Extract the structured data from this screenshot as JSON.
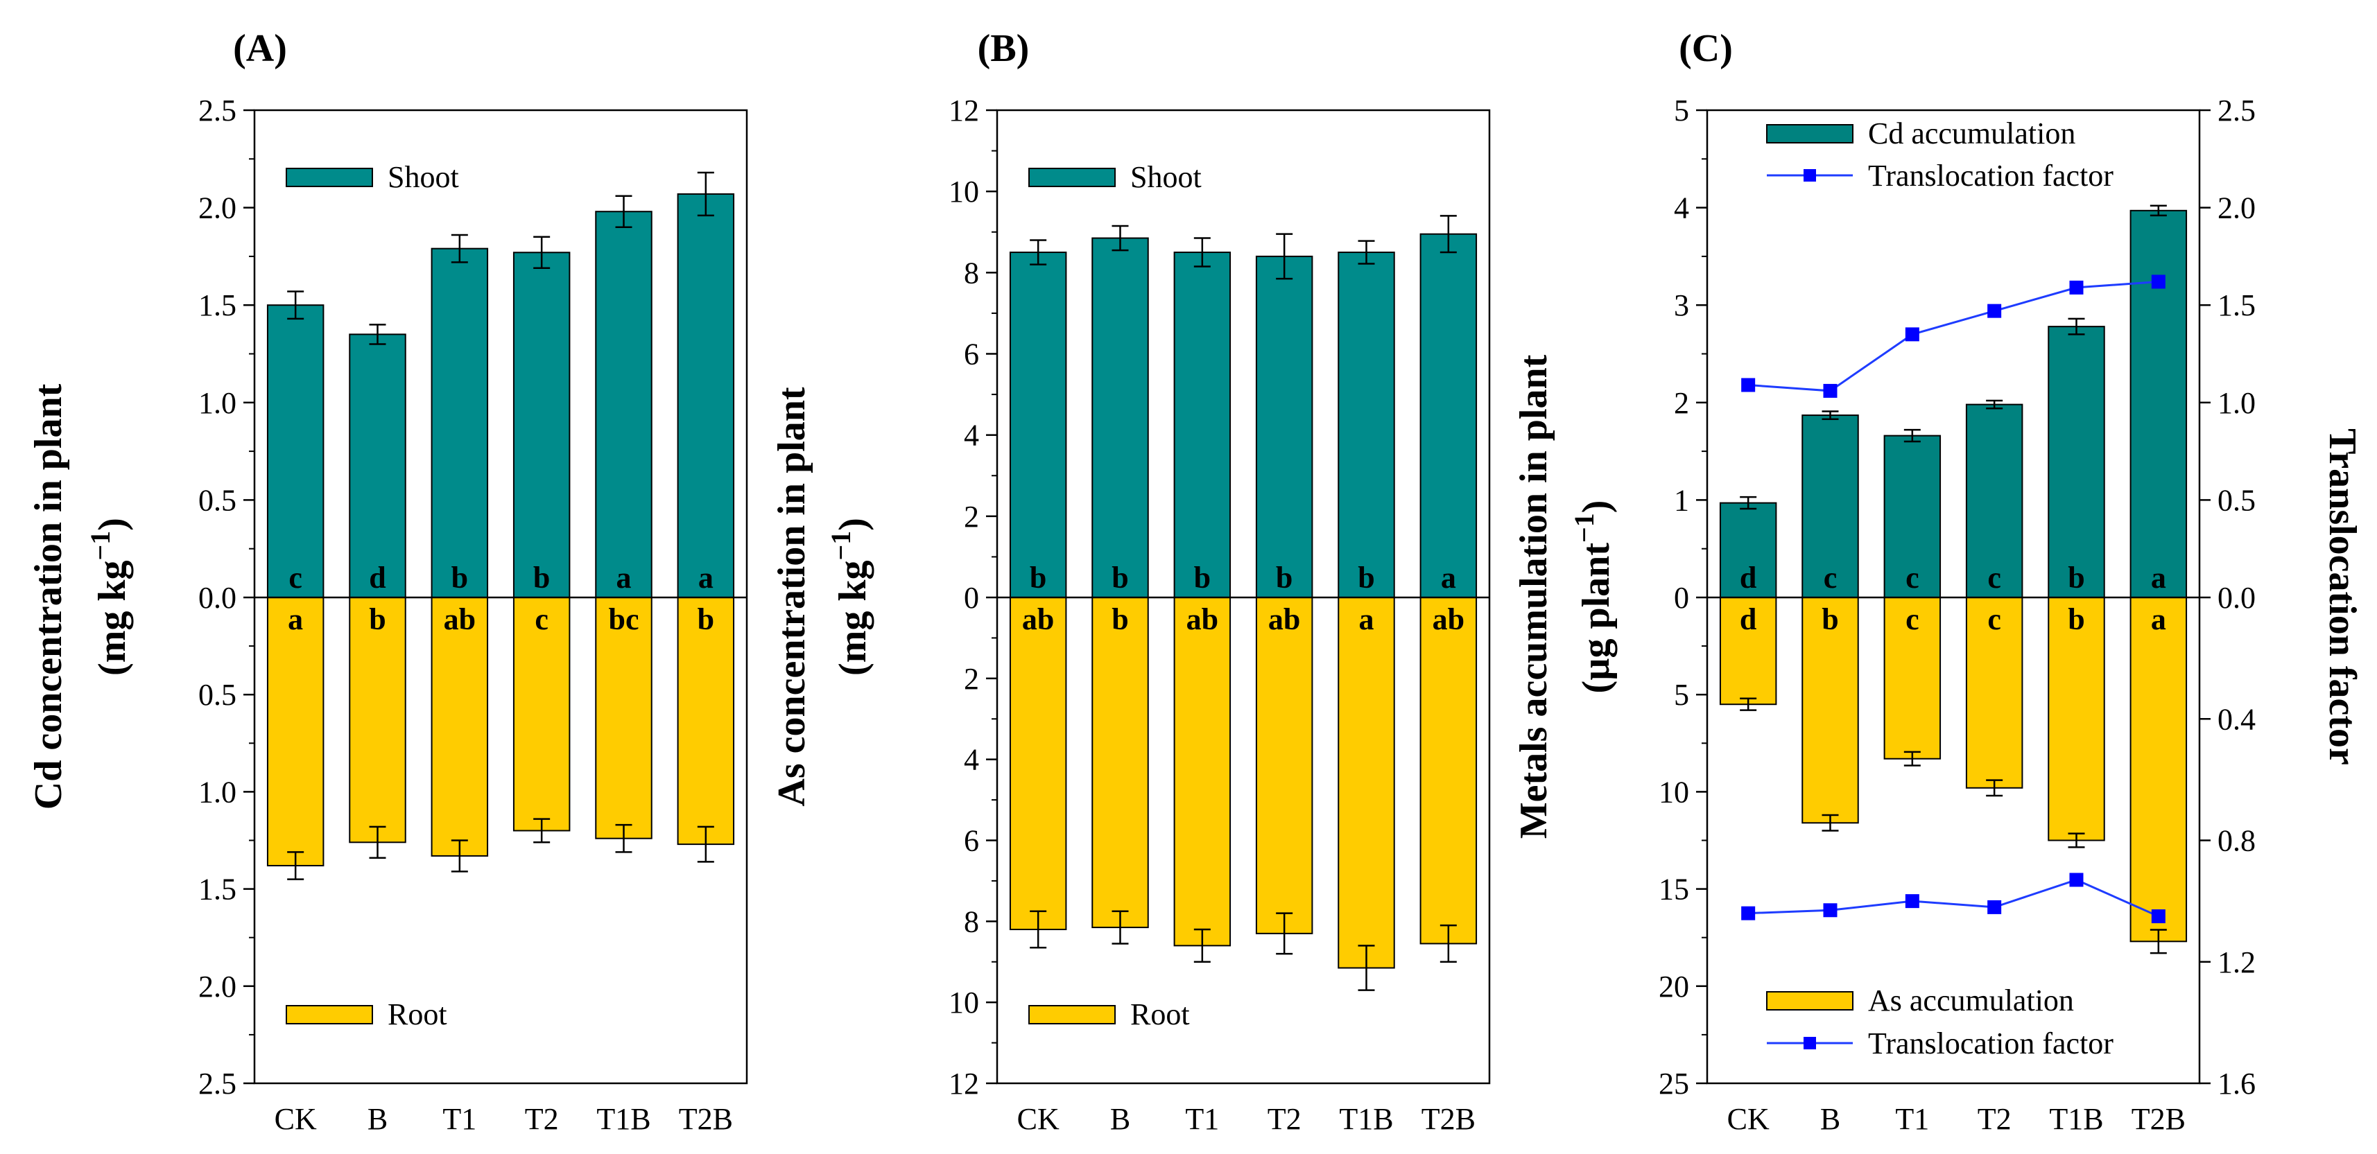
{
  "colors": {
    "shoot": "#008B8B",
    "root": "#FFCC00",
    "tf_line": "#1E3CFF",
    "tf_marker": "#0000FF"
  },
  "chart_data": [
    {
      "type": "bar",
      "panel_label": "(A)",
      "categories": [
        "CK",
        "B",
        "T1",
        "T2",
        "T1B",
        "T2B"
      ],
      "y_title_line1": "Cd concentration in plant",
      "y_title_line2_prefix": "(mg kg",
      "y_title_sup": "−1",
      "y_title_suffix": ")",
      "upper": {
        "ylim": [
          0,
          2.5
        ],
        "ticks": [
          0.0,
          0.5,
          1.0,
          1.5,
          2.0,
          2.5
        ],
        "tick_labels": [
          "0.0",
          "0.5",
          "1.0",
          "1.5",
          "2.0",
          "2.5"
        ]
      },
      "lower": {
        "ylim": [
          0,
          2.5
        ],
        "ticks": [
          0.5,
          1.0,
          1.5,
          2.0,
          2.5
        ],
        "tick_labels": [
          "0.5",
          "1.0",
          "1.5",
          "2.0",
          "2.5"
        ]
      },
      "series": [
        {
          "name": "Shoot",
          "position": "upper",
          "values": [
            1.5,
            1.35,
            1.79,
            1.77,
            1.98,
            2.07
          ],
          "errors": [
            0.07,
            0.05,
            0.07,
            0.08,
            0.08,
            0.11
          ],
          "letters": [
            "c",
            "d",
            "b",
            "b",
            "a",
            "a"
          ]
        },
        {
          "name": "Root",
          "position": "lower",
          "values": [
            1.38,
            1.26,
            1.33,
            1.2,
            1.24,
            1.27
          ],
          "errors": [
            0.07,
            0.08,
            0.08,
            0.06,
            0.07,
            0.09
          ],
          "letters": [
            "a",
            "b",
            "ab",
            "c",
            "bc",
            "b"
          ]
        }
      ],
      "legend": {
        "shoot": "Shoot",
        "root": "Root"
      }
    },
    {
      "type": "bar",
      "panel_label": "(B)",
      "categories": [
        "CK",
        "B",
        "T1",
        "T2",
        "T1B",
        "T2B"
      ],
      "y_title_line1": "As concentration in plant",
      "y_title_line2_prefix": "(mg kg",
      "y_title_sup": "−1",
      "y_title_suffix": ")",
      "upper": {
        "ylim": [
          0,
          12
        ],
        "ticks": [
          0,
          2,
          4,
          6,
          8,
          10,
          12
        ],
        "tick_labels": [
          "0",
          "2",
          "4",
          "6",
          "8",
          "10",
          "12"
        ]
      },
      "lower": {
        "ylim": [
          0,
          12
        ],
        "ticks": [
          2,
          4,
          6,
          8,
          10,
          12
        ],
        "tick_labels": [
          "2",
          "4",
          "6",
          "8",
          "10",
          "12"
        ]
      },
      "series": [
        {
          "name": "Shoot",
          "position": "upper",
          "values": [
            8.5,
            8.85,
            8.5,
            8.4,
            8.5,
            8.95
          ],
          "errors": [
            0.3,
            0.3,
            0.35,
            0.55,
            0.28,
            0.45
          ],
          "letters": [
            "b",
            "b",
            "b",
            "b",
            "b",
            "a"
          ]
        },
        {
          "name": "Root",
          "position": "lower",
          "values": [
            8.2,
            8.15,
            8.6,
            8.3,
            9.15,
            8.55
          ],
          "errors": [
            0.45,
            0.4,
            0.4,
            0.5,
            0.55,
            0.45
          ],
          "letters": [
            "ab",
            "b",
            "ab",
            "ab",
            "a",
            "ab"
          ]
        }
      ],
      "legend": {
        "shoot": "Shoot",
        "root": "Root"
      }
    },
    {
      "type": "bar+line",
      "panel_label": "(C)",
      "categories": [
        "CK",
        "B",
        "T1",
        "T2",
        "T1B",
        "T2B"
      ],
      "y_title_line1": "Metals accumulation  in plant",
      "y_title_line2_prefix": "(µg plant",
      "y_title_sup": "−1",
      "y_title_suffix": ")",
      "y2_title": "Translocation factor",
      "upper": {
        "ylim": [
          0,
          5
        ],
        "ticks": [
          0,
          1,
          2,
          3,
          4,
          5
        ],
        "tick_labels": [
          "0",
          "1",
          "2",
          "3",
          "4",
          "5"
        ]
      },
      "lower": {
        "ylim": [
          0,
          25
        ],
        "ticks": [
          5,
          10,
          15,
          20,
          25
        ],
        "tick_labels": [
          "5",
          "10",
          "15",
          "20",
          "25"
        ]
      },
      "y2_upper": {
        "ylim": [
          0,
          2.5
        ],
        "ticks": [
          0.0,
          0.5,
          1.0,
          1.5,
          2.0,
          2.5
        ],
        "tick_labels": [
          "0.0",
          "0.5",
          "1.0",
          "1.5",
          "2.0",
          "2.5"
        ]
      },
      "y2_lower": {
        "ylim": [
          0,
          1.6
        ],
        "ticks": [
          0.4,
          0.8,
          1.2,
          1.6
        ],
        "tick_labels": [
          "0.4",
          "0.8",
          "1.2",
          "1.6"
        ]
      },
      "series": [
        {
          "name": "Cd accumulation",
          "position": "upper",
          "values": [
            0.97,
            1.87,
            1.66,
            1.98,
            2.78,
            3.97
          ],
          "errors": [
            0.06,
            0.04,
            0.06,
            0.04,
            0.08,
            0.05
          ],
          "letters": [
            "d",
            "c",
            "c",
            "c",
            "b",
            "a"
          ]
        },
        {
          "name": "As accumulation",
          "position": "lower",
          "values": [
            5.5,
            11.6,
            8.3,
            9.8,
            12.5,
            17.7
          ],
          "errors": [
            0.3,
            0.4,
            0.35,
            0.4,
            0.35,
            0.6
          ],
          "letters": [
            "d",
            "b",
            "c",
            "c",
            "b",
            "a"
          ]
        },
        {
          "name": "Translocation factor",
          "position": "upper-line",
          "axis": "y2_upper",
          "values": [
            1.09,
            1.06,
            1.35,
            1.47,
            1.59,
            1.62
          ]
        },
        {
          "name": "Translocation factor",
          "position": "lower-line",
          "axis": "y2_lower",
          "values": [
            1.04,
            1.03,
            1.0,
            1.02,
            0.93,
            1.05
          ]
        }
      ],
      "legend": {
        "upper_bar": "Cd accumulation",
        "upper_line": "Translocation factor",
        "lower_bar": "As accumulation",
        "lower_line": "Translocation factor"
      }
    }
  ]
}
